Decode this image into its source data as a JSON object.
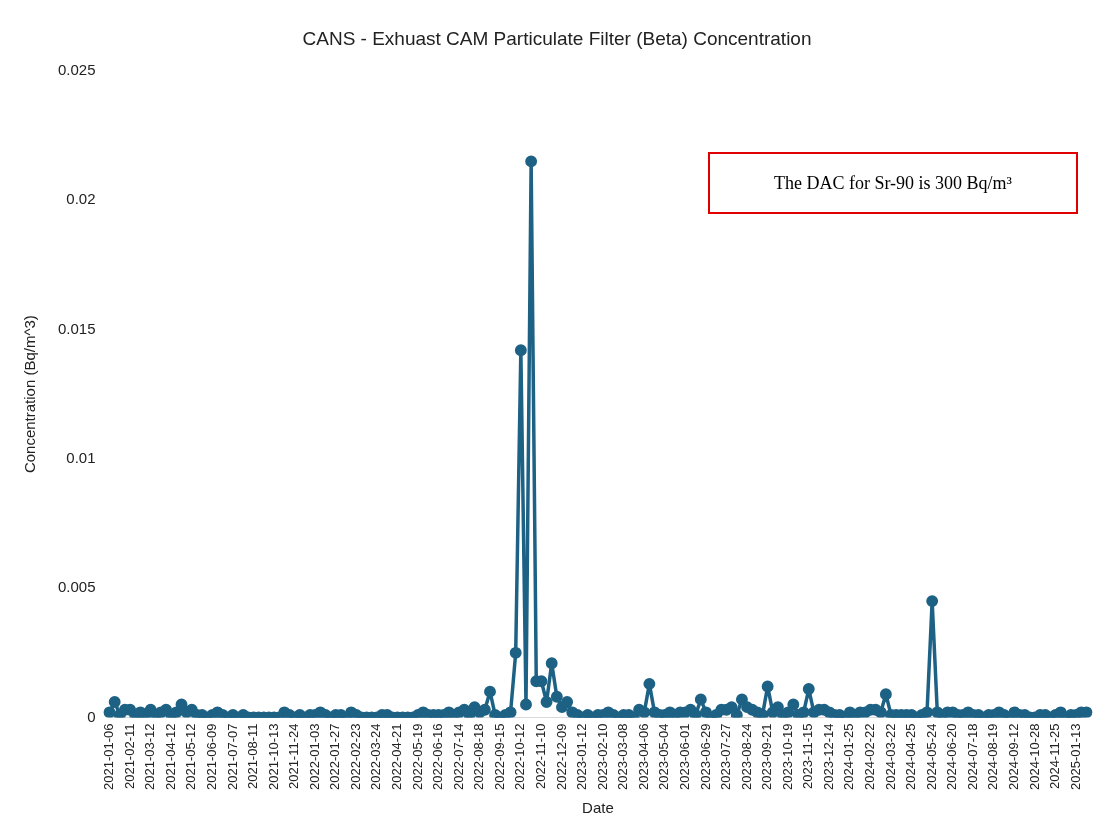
{
  "chart_data": {
    "type": "line",
    "title": "CANS - Exhuast CAM Particulate Filter (Beta) Concentration",
    "xlabel": "Date",
    "ylabel": "Concentration (Bq/m^3)",
    "annotations": [
      "The DAC for Sr-90 is 300 Bq/m³"
    ],
    "categories": [
      "2021-01-06",
      null,
      null,
      null,
      "2021-02-11",
      null,
      null,
      null,
      "2021-03-12",
      null,
      null,
      null,
      "2021-04-12",
      null,
      null,
      null,
      "2021-05-12",
      null,
      null,
      null,
      "2021-06-09",
      null,
      null,
      null,
      "2021-07-07",
      null,
      null,
      null,
      "2021-08-11",
      null,
      null,
      null,
      "2021-10-13",
      null,
      null,
      null,
      "2021-11-24",
      null,
      null,
      null,
      "2022-01-03",
      null,
      null,
      null,
      "2022-01-27",
      null,
      null,
      null,
      "2022-02-23",
      null,
      null,
      null,
      "2022-03-24",
      null,
      null,
      null,
      "2022-04-21",
      null,
      null,
      null,
      "2022-05-19",
      null,
      null,
      null,
      "2022-06-16",
      null,
      null,
      null,
      "2022-07-14",
      null,
      null,
      null,
      "2022-08-18",
      null,
      null,
      null,
      "2022-09-15",
      null,
      null,
      null,
      "2022-10-12",
      null,
      null,
      null,
      "2022-11-10",
      null,
      null,
      null,
      "2022-12-09",
      null,
      null,
      null,
      "2023-01-12",
      null,
      null,
      null,
      "2023-02-10",
      null,
      null,
      null,
      "2023-03-08",
      null,
      null,
      null,
      "2023-04-06",
      null,
      null,
      null,
      "2023-05-04",
      null,
      null,
      null,
      "2023-06-01",
      null,
      null,
      null,
      "2023-06-29",
      null,
      null,
      null,
      "2023-07-27",
      null,
      null,
      null,
      "2023-08-24",
      null,
      null,
      null,
      "2023-09-21",
      null,
      null,
      null,
      "2023-10-19",
      null,
      null,
      null,
      "2023-11-15",
      null,
      null,
      null,
      "2023-12-14",
      null,
      null,
      null,
      "2024-01-25",
      null,
      null,
      null,
      "2024-02-22",
      null,
      null,
      null,
      "2024-03-22",
      null,
      null,
      null,
      "2024-04-25",
      null,
      null,
      null,
      "2024-05-24",
      null,
      null,
      null,
      "2024-06-20",
      null,
      null,
      null,
      "2024-07-18",
      null,
      null,
      null,
      "2024-08-19",
      null,
      null,
      null,
      "2024-09-12",
      null,
      null,
      null,
      "2024-10-28",
      null,
      null,
      null,
      "2024-11-25",
      null,
      null,
      null,
      "2025-01-13",
      null,
      null
    ],
    "series": [
      {
        "color": "#1d6184",
        "values": [
          0.0002,
          0.0006,
          0.0001,
          0.0003,
          0.0003,
          0.0001,
          0.0002,
          0.0001,
          0.0003,
          0.0001,
          0.0002,
          0.0003,
          0.0001,
          0.0002,
          0.0005,
          0.0002,
          0.0003,
          0.0001,
          0.0001,
          0,
          0.0001,
          0.0002,
          0.0001,
          0,
          0.0001,
          0,
          0.0001,
          0,
          0,
          0,
          0,
          0,
          0,
          0,
          0.0002,
          0.0001,
          0,
          0.0001,
          0,
          0.0001,
          0.0001,
          0.0002,
          0.0001,
          0,
          0.0001,
          0.0001,
          0,
          0.0002,
          0.0001,
          0,
          0,
          0,
          0,
          0.0001,
          0.0001,
          0,
          0,
          0,
          0,
          0,
          0.0001,
          0.0002,
          0.0001,
          0.0001,
          0.0001,
          0.0001,
          0.0002,
          0.0001,
          0.0002,
          0.0003,
          0.0001,
          0.0004,
          0.0002,
          0.0003,
          0.001,
          0.0001,
          0,
          0.0001,
          0.0002,
          0.0025,
          0.0142,
          0.0005,
          0.0215,
          0.0014,
          0.0014,
          0.0006,
          0.0021,
          0.0008,
          0.0004,
          0.0006,
          0.0002,
          0.0001,
          0,
          0.0001,
          0,
          0.0001,
          0.0001,
          0.0002,
          0.0001,
          0,
          0.0001,
          0.0001,
          0,
          0.0003,
          0.0002,
          0.0013,
          0.0002,
          0.0001,
          0.0001,
          0.0002,
          0.0001,
          0.0002,
          0.0002,
          0.0003,
          0.0001,
          0.0007,
          0.0002,
          0,
          0.0001,
          0.0003,
          0.0003,
          0.0004,
          0.0001,
          0.0007,
          0.0004,
          0.0003,
          0.0002,
          0.0001,
          0.0012,
          0.0002,
          0.0004,
          0.0001,
          0.0002,
          0.0005,
          0.0001,
          0.0002,
          0.0011,
          0.0002,
          0.0003,
          0.0003,
          0.0002,
          0.0001,
          0.0001,
          0,
          0.0002,
          0.0001,
          0.0002,
          0.0002,
          0.0003,
          0.0003,
          0.0002,
          0.0009,
          0.0001,
          0.0001,
          0.0001,
          0.0001,
          0.0001,
          0,
          0.0001,
          0.0002,
          0.0045,
          0.0002,
          0.0001,
          0.0002,
          0.0002,
          0.0001,
          0.0001,
          0.0002,
          0.0001,
          0.0001,
          0,
          0.0001,
          0.0001,
          0.0002,
          0.0001,
          0,
          0.0002,
          0.0001,
          0.0001,
          0,
          0,
          0.0001,
          0.0001,
          0,
          0.0001,
          0.0002,
          0,
          0.0001,
          0.0001,
          0.0002,
          0.0002
        ]
      }
    ],
    "ylim": [
      0,
      0.025
    ],
    "yticks": [
      0,
      0.005,
      0.01,
      0.015,
      0.02,
      0.025
    ],
    "grid": false,
    "legend": false,
    "marker": "circle",
    "line_style": "solid"
  }
}
